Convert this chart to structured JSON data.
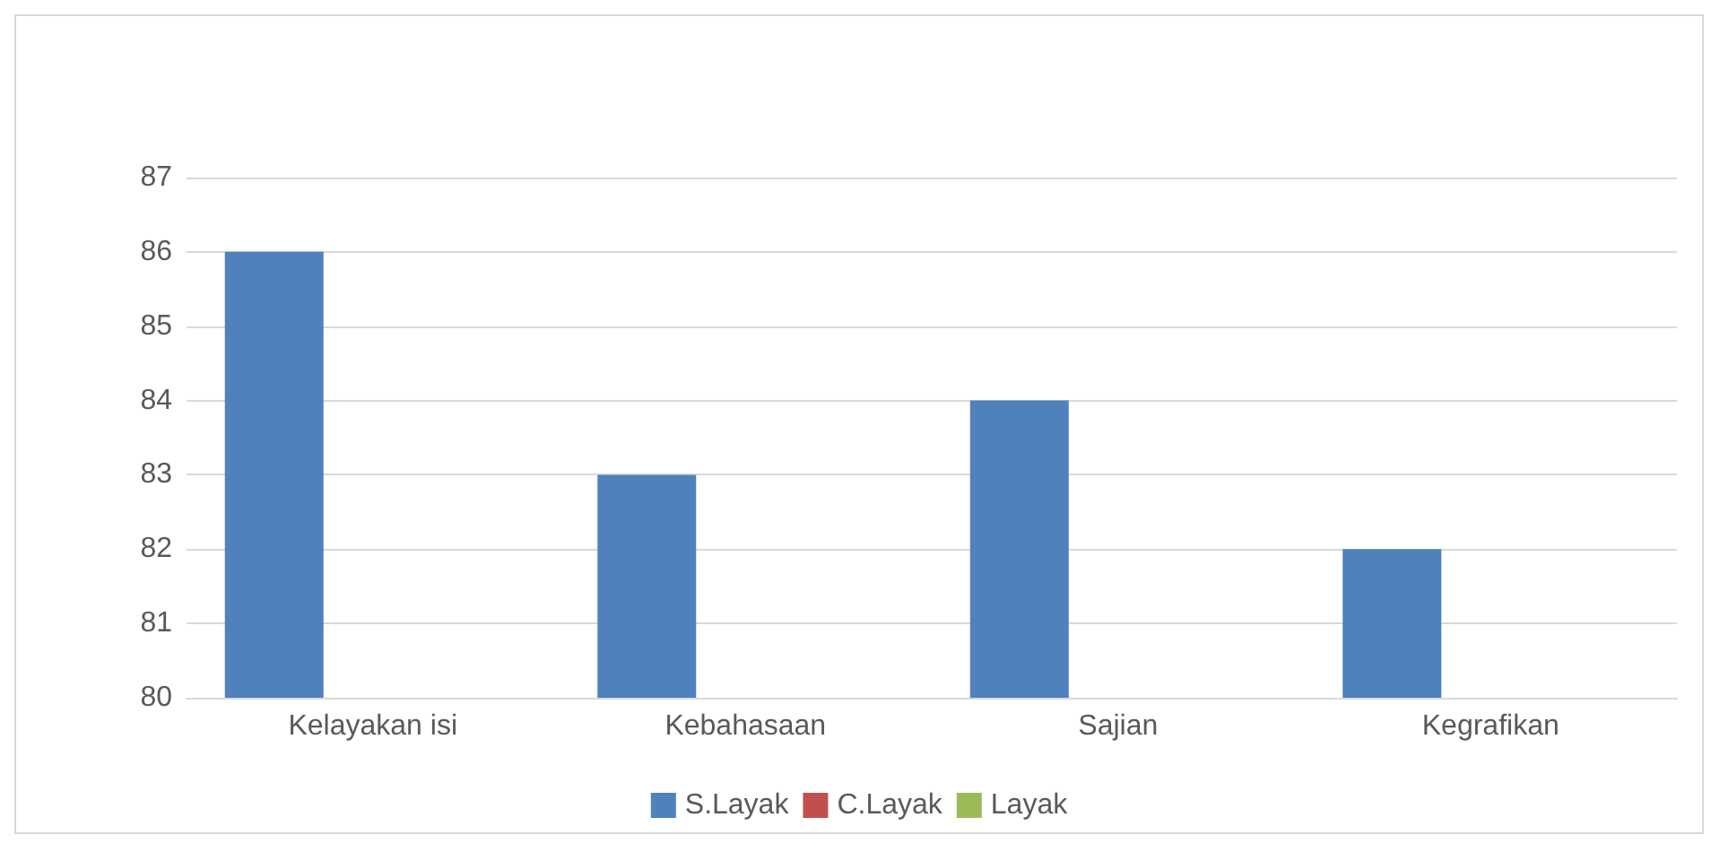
{
  "chart_data": {
    "type": "bar",
    "categories": [
      "Kelayakan isi",
      "Kebahasaan",
      "Sajian",
      "Kegrafikan"
    ],
    "series": [
      {
        "name": "S.Layak",
        "color": "#4f81bd",
        "values": [
          86,
          83,
          84,
          82
        ]
      },
      {
        "name": "C.Layak",
        "color": "#c0504d",
        "values": [
          null,
          null,
          null,
          null
        ]
      },
      {
        "name": "Layak",
        "color": "#9bbb59",
        "values": [
          null,
          null,
          null,
          null
        ]
      }
    ],
    "ylim": [
      80,
      87
    ],
    "yticks": [
      80,
      81,
      82,
      83,
      84,
      85,
      86,
      87
    ],
    "grid": "y",
    "legend": "bottom"
  }
}
